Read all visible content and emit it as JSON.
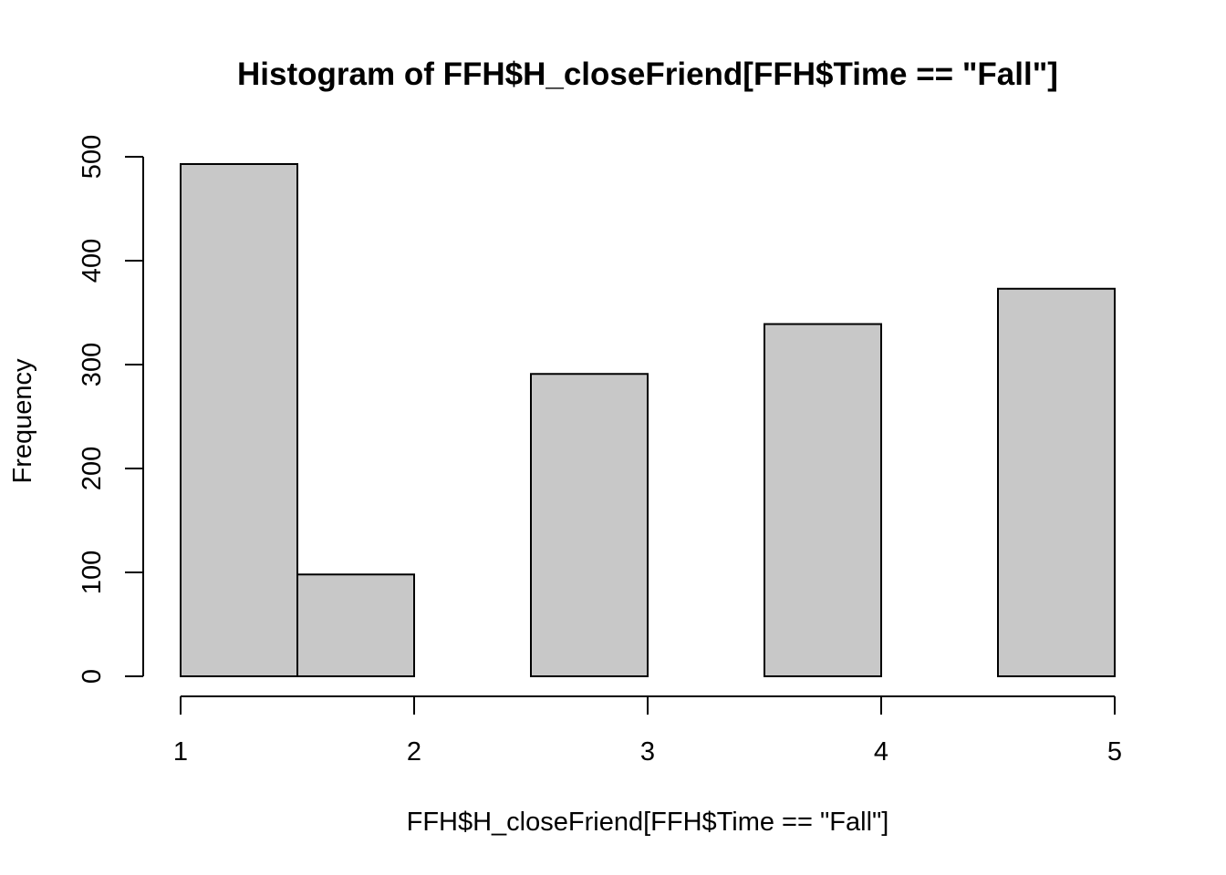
{
  "chart_data": {
    "type": "bar",
    "title": "Histogram of FFH$H_closeFriend[FFH$Time == \"Fall\"]",
    "xlabel": "FFH$H_closeFriend[FFH$Time == \"Fall\"]",
    "ylabel": "Frequency",
    "bins": [
      {
        "start": 1.0,
        "end": 1.5,
        "count": 493
      },
      {
        "start": 1.5,
        "end": 2.0,
        "count": 98
      },
      {
        "start": 2.0,
        "end": 2.5,
        "count": 0
      },
      {
        "start": 2.5,
        "end": 3.0,
        "count": 291
      },
      {
        "start": 3.0,
        "end": 3.5,
        "count": 0
      },
      {
        "start": 3.5,
        "end": 4.0,
        "count": 339
      },
      {
        "start": 4.0,
        "end": 4.5,
        "count": 0
      },
      {
        "start": 4.5,
        "end": 5.0,
        "count": 373
      }
    ],
    "xlim": [
      1,
      5
    ],
    "ylim": [
      0,
      500
    ],
    "x_ticks": [
      "1",
      "2",
      "3",
      "4",
      "5"
    ],
    "y_ticks": [
      "0",
      "100",
      "200",
      "300",
      "400",
      "500"
    ],
    "bar_color": "#c8c8c8",
    "grid": false
  }
}
